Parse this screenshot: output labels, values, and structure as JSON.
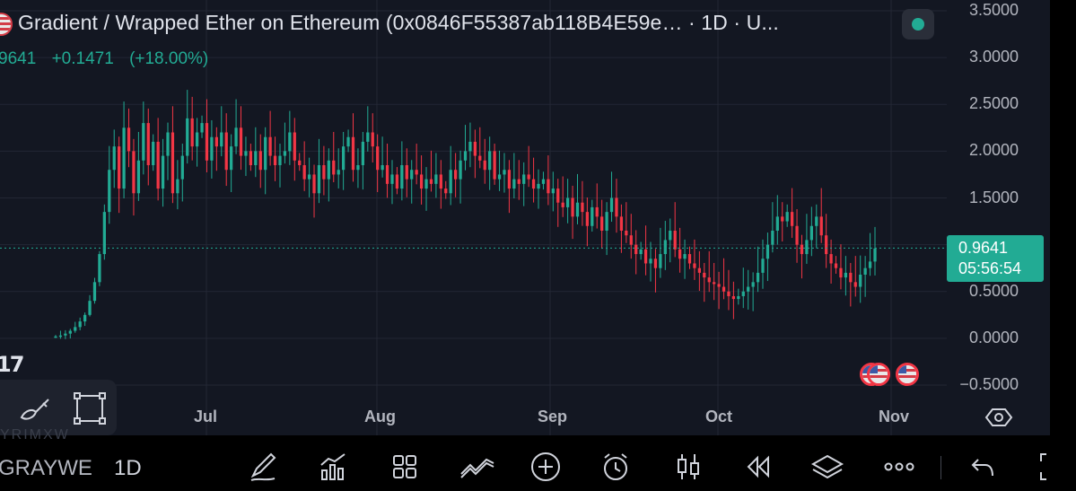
{
  "header": {
    "title": "Gradient / Wrapped Ether on Ethereum (0x0846F55387ab118B4E59e… · 1D · U...",
    "price_fragment": "9641",
    "change_abs": "+0.1471",
    "change_pct": "(+18.00%)"
  },
  "colors": {
    "up": "#22ab94",
    "down": "#f23645",
    "background": "#131722",
    "grid": "#232734",
    "accent": "#22ab94"
  },
  "chart_data": {
    "type": "candlestick",
    "interval": "1D",
    "ylim": [
      -0.5,
      3.5
    ],
    "y_ticks": [
      "3.5000",
      "3.0000",
      "2.5000",
      "2.0000",
      "1.5000",
      "1.0000",
      "0.5000",
      "0.0000",
      "−0.5000"
    ],
    "x_ticks": [
      "Jul",
      "Aug",
      "Sep",
      "Oct",
      "Nov"
    ],
    "last_price": "0.9641",
    "countdown": "05:56:54",
    "candles_close": [
      0.02,
      0.03,
      0.05,
      0.08,
      0.12,
      0.18,
      0.25,
      0.4,
      0.6,
      0.9,
      1.35,
      1.8,
      2.05,
      1.6,
      2.25,
      2.0,
      1.55,
      1.9,
      2.3,
      1.85,
      2.1,
      1.6,
      1.95,
      2.2,
      1.55,
      1.7,
      1.95,
      2.35,
      2.05,
      2.2,
      2.3,
      1.9,
      2.15,
      2.05,
      2.2,
      1.8,
      2.05,
      2.25,
      1.95,
      2.0,
      1.85,
      2.0,
      1.8,
      2.15,
      1.95,
      1.85,
      1.95,
      2.0,
      2.2,
      1.9,
      1.85,
      1.7,
      1.75,
      1.55,
      1.85,
      1.7,
      1.9,
      1.75,
      1.8,
      2.05,
      2.15,
      1.8,
      1.85,
      2.1,
      2.2,
      2.05,
      1.8,
      1.85,
      1.65,
      1.75,
      1.6,
      1.85,
      1.7,
      1.8,
      1.75,
      1.6,
      1.7,
      1.65,
      1.75,
      1.6,
      1.55,
      1.8,
      1.7,
      1.9,
      2.0,
      2.1,
      1.95,
      1.9,
      1.8,
      2.0,
      1.7,
      1.75,
      1.8,
      1.6,
      1.7,
      1.65,
      1.75,
      1.7,
      1.6,
      1.65,
      1.7,
      1.55,
      1.6,
      1.45,
      1.4,
      1.5,
      1.3,
      1.45,
      1.35,
      1.2,
      1.4,
      1.3,
      1.15,
      1.35,
      1.5,
      1.3,
      1.15,
      1.1,
      1.0,
      0.9,
      0.95,
      0.8,
      0.85,
      0.75,
      0.9,
      1.05,
      1.15,
      0.95,
      0.85,
      0.9,
      0.8,
      0.75,
      0.7,
      0.65,
      0.6,
      0.58,
      0.55,
      0.5,
      0.45,
      0.42,
      0.45,
      0.5,
      0.55,
      0.6,
      0.7,
      0.85,
      1.0,
      1.15,
      1.3,
      1.25,
      1.35,
      1.2,
      1.0,
      0.9,
      1.05,
      1.2,
      1.3,
      1.1,
      0.9,
      0.8,
      0.75,
      0.65,
      0.7,
      0.6,
      0.55,
      0.68,
      0.75,
      0.82,
      0.96
    ]
  },
  "draw_toolbar": {
    "brush_icon": "brush-icon",
    "select_icon": "rect-select-icon"
  },
  "bottom_bar": {
    "symbol": "GRAYWE",
    "interval": "1D",
    "icons": [
      "pen-icon",
      "indicators-icon",
      "grid-icon",
      "trend-icon",
      "plus-circle-icon",
      "alarm-icon",
      "candle-icon",
      "replay-icon",
      "layers-icon",
      "more-icon",
      "undo-icon",
      "fullscreen-icon"
    ]
  },
  "faint_label": "YRIMXW",
  "logo": "17"
}
